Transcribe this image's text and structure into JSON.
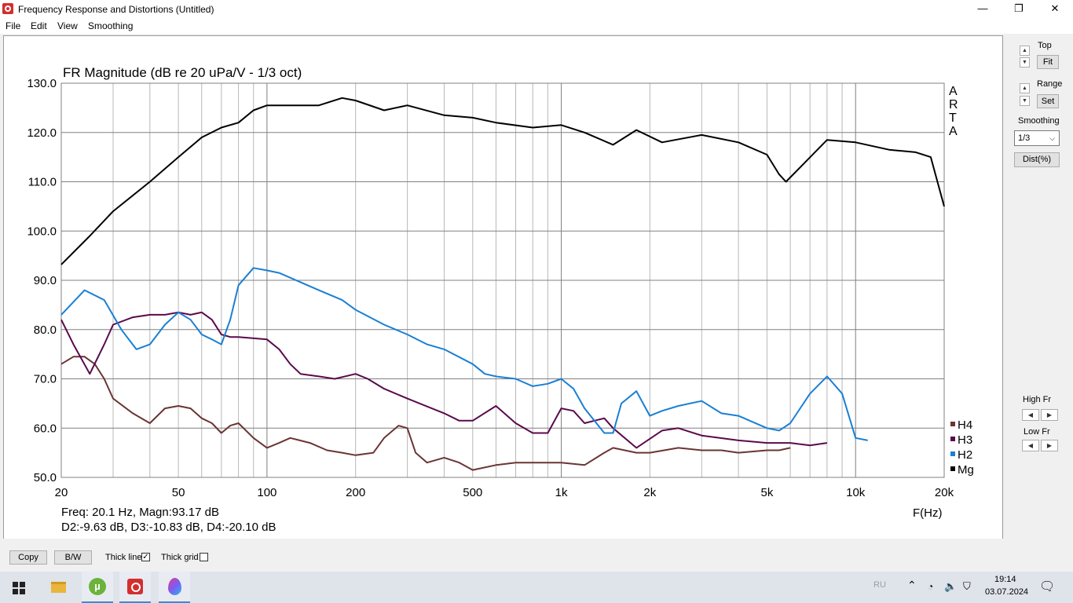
{
  "window": {
    "title": "Frequency Response and Distortions (Untitled)",
    "minimize": "—",
    "maximize": "❐",
    "close": "✕"
  },
  "menu": [
    "File",
    "Edit",
    "View",
    "Smoothing"
  ],
  "panel": {
    "top_label": "Top",
    "fit_label": "Fit",
    "range_label": "Range",
    "set_label": "Set",
    "smoothing_label": "Smoothing",
    "smoothing_value": "1/3",
    "dist_label": "Dist(%)",
    "high_fr_label": "High Fr",
    "low_fr_label": "Low Fr"
  },
  "bottom": {
    "copy_label": "Copy",
    "bw_label": "B/W",
    "thick_line_label": "Thick line",
    "thick_line_checked": true,
    "thick_grid_label": "Thick grid",
    "thick_grid_checked": false
  },
  "taskbar": {
    "lang": "RU",
    "time": "19:14",
    "date": "03.07.2024"
  },
  "chart_data": {
    "type": "line",
    "title": "FR Magnitude (dB re 20 uPa/V - 1/3 oct)",
    "brand": [
      "A",
      "R",
      "T",
      "A"
    ],
    "xlabel": "F(Hz)",
    "x_scale": "log",
    "xlim": [
      20,
      20000
    ],
    "ylim": [
      50,
      130
    ],
    "x_ticks": [
      {
        "v": 20,
        "label": "20"
      },
      {
        "v": 50,
        "label": "50"
      },
      {
        "v": 100,
        "label": "100"
      },
      {
        "v": 200,
        "label": "200"
      },
      {
        "v": 500,
        "label": "500"
      },
      {
        "v": 1000,
        "label": "1k"
      },
      {
        "v": 2000,
        "label": "2k"
      },
      {
        "v": 5000,
        "label": "5k"
      },
      {
        "v": 10000,
        "label": "10k"
      },
      {
        "v": 20000,
        "label": "20k"
      }
    ],
    "y_ticks": [
      {
        "v": 50,
        "label": "50.0"
      },
      {
        "v": 60,
        "label": "60.0"
      },
      {
        "v": 70,
        "label": "70.0"
      },
      {
        "v": 80,
        "label": "80.0"
      },
      {
        "v": 90,
        "label": "90.0"
      },
      {
        "v": 100,
        "label": "100.0"
      },
      {
        "v": 110,
        "label": "110.0"
      },
      {
        "v": 120,
        "label": "120.0"
      },
      {
        "v": 130,
        "label": "130.0"
      }
    ],
    "grid": true,
    "legend_position": "right-bottom",
    "readout": {
      "line1": "Freq: 20.1 Hz, Magn:93.17 dB",
      "line2": "D2:-9.63 dB, D3:-10.83 dB, D4:-20.10 dB"
    },
    "series": [
      {
        "name": "Mg",
        "color": "#000000",
        "x": [
          20,
          25,
          30,
          40,
          50,
          60,
          70,
          80,
          90,
          100,
          120,
          150,
          180,
          200,
          250,
          300,
          400,
          500,
          600,
          800,
          1000,
          1200,
          1500,
          1800,
          2200,
          3000,
          4000,
          5000,
          5500,
          5800,
          6500,
          8000,
          10000,
          13000,
          16000,
          18000,
          20000
        ],
        "y": [
          93.2,
          99,
          104,
          110,
          115,
          119,
          121,
          122,
          124.5,
          125.5,
          125.5,
          125.5,
          127,
          126.5,
          124.5,
          125.5,
          123.5,
          123,
          122,
          121,
          121.5,
          120,
          117.5,
          120.5,
          118,
          119.5,
          118,
          115.5,
          111.5,
          110,
          113,
          118.5,
          118,
          116.5,
          116,
          115,
          105
        ]
      },
      {
        "name": "H2",
        "color": "#1a7fd4",
        "x": [
          20,
          24,
          28,
          32,
          36,
          40,
          45,
          50,
          55,
          60,
          65,
          70,
          75,
          80,
          90,
          100,
          110,
          150,
          180,
          200,
          250,
          300,
          350,
          400,
          500,
          550,
          600,
          700,
          800,
          900,
          1000,
          1100,
          1200,
          1400,
          1500,
          1600,
          1800,
          2000,
          2200,
          2500,
          3000,
          3500,
          4000,
          5000,
          5500,
          6000,
          7000,
          8000,
          9000,
          10000,
          11000
        ],
        "y": [
          83,
          88,
          86,
          80,
          76,
          77,
          81,
          83.5,
          82,
          79,
          78,
          77,
          82,
          89,
          92.5,
          92,
          91.5,
          88,
          86,
          84,
          81,
          79,
          77,
          76,
          73,
          71,
          70.5,
          70,
          68.5,
          69,
          70,
          68,
          64,
          59,
          59,
          65,
          67.5,
          62.5,
          63.5,
          64.5,
          65.5,
          63,
          62.5,
          60,
          59.5,
          61,
          67,
          70.5,
          67,
          58,
          57.5
        ]
      },
      {
        "name": "H3",
        "color": "#5a0a4c",
        "x": [
          20,
          22,
          25,
          28,
          30,
          35,
          40,
          45,
          50,
          55,
          60,
          65,
          70,
          75,
          80,
          100,
          110,
          120,
          130,
          150,
          170,
          200,
          220,
          250,
          300,
          400,
          450,
          500,
          600,
          700,
          800,
          900,
          1000,
          1100,
          1200,
          1400,
          1500,
          1800,
          2200,
          2500,
          3000,
          4000,
          5000,
          5500,
          6000,
          7000,
          8000
        ],
        "y": [
          82,
          77,
          71,
          77,
          81,
          82.5,
          83,
          83,
          83.5,
          83,
          83.5,
          82,
          79,
          78.5,
          78.5,
          78,
          76,
          73,
          71,
          70.5,
          70,
          71,
          70,
          68,
          66,
          63,
          61.5,
          61.5,
          64.5,
          61,
          59,
          59,
          64,
          63.5,
          61,
          62,
          60,
          56,
          59.5,
          60,
          58.5,
          57.5,
          57,
          57,
          57,
          56.5,
          57
        ]
      },
      {
        "name": "H4",
        "color": "#6b3434",
        "x": [
          20,
          22,
          24,
          26,
          28,
          30,
          35,
          40,
          45,
          50,
          55,
          60,
          65,
          70,
          75,
          80,
          90,
          100,
          110,
          120,
          140,
          160,
          180,
          200,
          230,
          250,
          280,
          300,
          320,
          350,
          400,
          450,
          500,
          600,
          700,
          800,
          1000,
          1200,
          1400,
          1500,
          1800,
          2000,
          2500,
          3000,
          3500,
          4000,
          5000,
          5500,
          6000
        ],
        "y": [
          73,
          74.5,
          74.5,
          73,
          70,
          66,
          63,
          61,
          64,
          64.5,
          64,
          62,
          61,
          59,
          60.5,
          61,
          58,
          56,
          57,
          58,
          57,
          55.5,
          55,
          54.5,
          55,
          58,
          60.5,
          60,
          55,
          53,
          54,
          53,
          51.5,
          52.5,
          53,
          53,
          53,
          52.5,
          55,
          56,
          55,
          55,
          56,
          55.5,
          55.5,
          55,
          55.5,
          55.5,
          56
        ]
      }
    ]
  }
}
